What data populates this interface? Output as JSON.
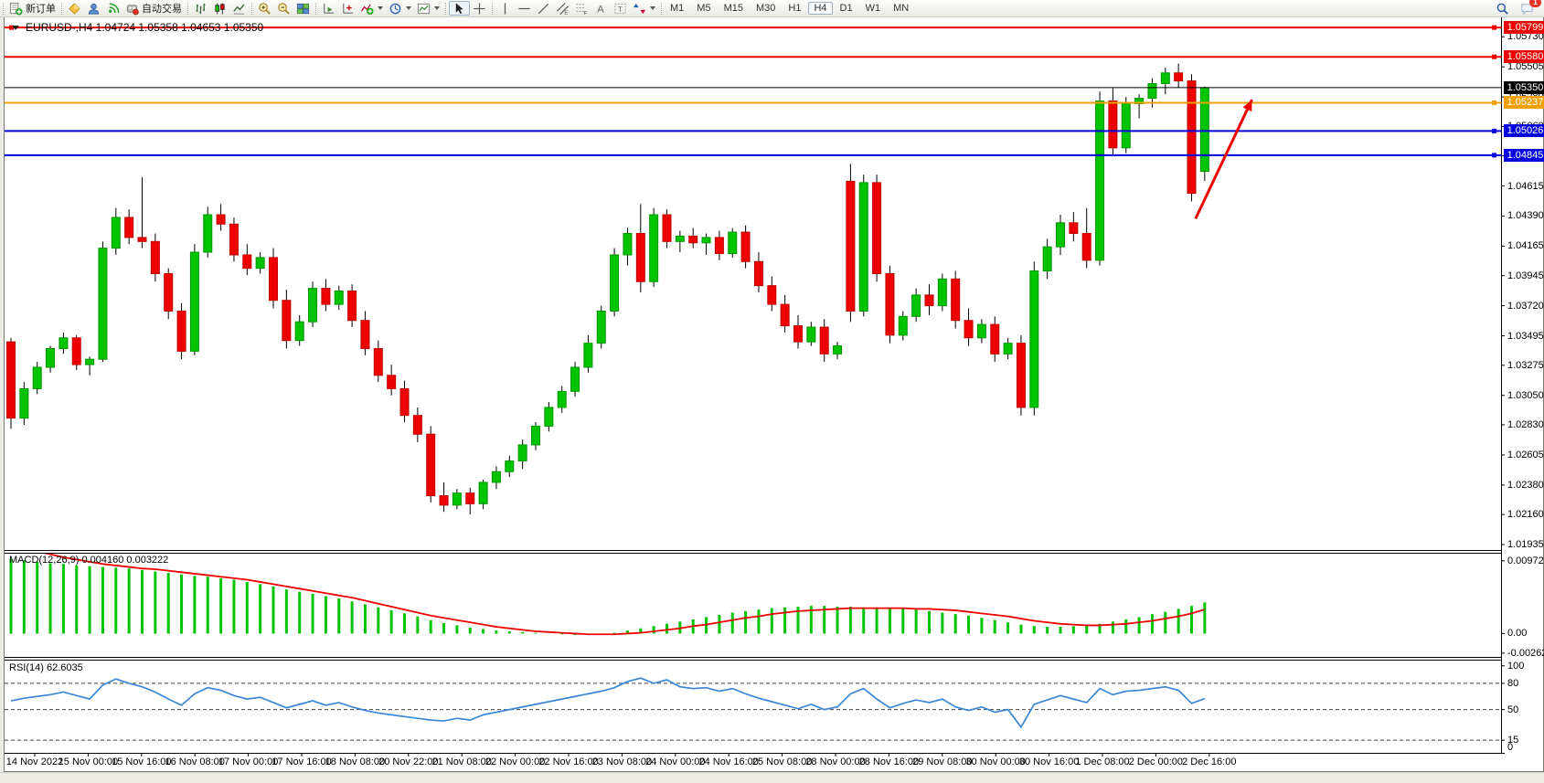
{
  "toolbar": {
    "new_order_label": "新订单",
    "autotrading_label": "自动交易",
    "timeframes": {
      "items": [
        "M1",
        "M5",
        "M15",
        "M30",
        "H1",
        "H4",
        "D1",
        "W1",
        "MN"
      ],
      "active": "H4"
    },
    "notification_count": "1",
    "icons": [
      "new-order-icon",
      "metaeditor-icon",
      "community-icon",
      "signals-icon",
      "autotrading-icon",
      "bar-chart-icon",
      "candle-chart-icon",
      "line-chart-icon",
      "zoom-in-icon",
      "zoom-out-icon",
      "tile-windows-icon",
      "auto-scroll-icon",
      "chart-shift-icon",
      "add-indicator-icon",
      "period-clock-icon",
      "template-icon",
      "cursor-icon",
      "crosshair-icon",
      "vline-icon",
      "hline-icon",
      "trendline-icon",
      "channel-icon",
      "fibonacci-icon",
      "text-icon",
      "text-label-icon",
      "arrows-icon",
      "search-icon",
      "chat-icon"
    ]
  },
  "chart": {
    "title": "EURUSD-,H4  1.04724 1.05358 1.04653 1.05350",
    "symbol": "EURUSD-",
    "timeframe": "H4",
    "ohlc_display": {
      "open": "1.04724",
      "high": "1.05358",
      "low": "1.04653",
      "close": "1.05350"
    }
  },
  "macd": {
    "label": "MACD(12,26,9) 0.004160 0.003222"
  },
  "rsi": {
    "label": "RSI(14) 62.6035"
  },
  "colors": {
    "up": "#00c400",
    "up_border": "#009600",
    "down": "#ee0000",
    "down_border": "#c00000",
    "wick": "#000000",
    "macd_histogram": "#00c400",
    "macd_signal": "#ee0000",
    "rsi_line": "#3a87d8",
    "hline_red": "#ee0000",
    "hline_orange": "#f0a000",
    "hline_blue": "#0000e0",
    "last_price": "#000000",
    "arrow": "#ee0000",
    "axis": "#000000"
  },
  "chart_data": [
    {
      "type": "candlestick",
      "title": "EURUSD-,H4",
      "ylim": [
        1.01908,
        1.05875
      ],
      "y_ticks": [
        "1.05730",
        "1.05505",
        "1.05280",
        "1.05060",
        "1.04840",
        "1.04615",
        "1.04390",
        "1.04165",
        "1.03945",
        "1.03720",
        "1.03495",
        "1.03275",
        "1.03050",
        "1.02830",
        "1.02605",
        "1.02380",
        "1.02160",
        "1.01935"
      ],
      "y_tick_values": [
        1.0573,
        1.05505,
        1.0528,
        1.0506,
        1.0484,
        1.04615,
        1.0439,
        1.04165,
        1.03945,
        1.0372,
        1.03495,
        1.03275,
        1.0305,
        1.0283,
        1.02605,
        1.0238,
        1.0216,
        1.01935
      ],
      "x_labels": [
        "14 Nov 2022",
        "15 Nov 00:00",
        "15 Nov 16:00",
        "16 Nov 08:00",
        "17 Nov 00:00",
        "17 Nov 16:00",
        "18 Nov 08:00",
        "20 Nov 22:00",
        "21 Nov 08:00",
        "22 Nov 00:00",
        "22 Nov 16:00",
        "23 Nov 08:00",
        "24 Nov 00:00",
        "24 Nov 16:00",
        "25 Nov 08:00",
        "28 Nov 00:00",
        "28 Nov 16:00",
        "29 Nov 08:00",
        "30 Nov 00:00",
        "30 Nov 16:00",
        "1 Dec 08:00",
        "2 Dec 00:00",
        "2 Dec 16:00"
      ],
      "hlines": [
        {
          "price": 1.05799,
          "label": "1.05799",
          "color": "#ee0000",
          "width": 2,
          "handles": [
            "left",
            "right"
          ]
        },
        {
          "price": 1.0558,
          "label": "1.05580",
          "color": "#ee0000",
          "width": 2,
          "handles": [
            "right"
          ]
        },
        {
          "price": 1.0535,
          "label": "1.05350",
          "color": "#000000",
          "width": 1,
          "handles": [],
          "is_last_price": true
        },
        {
          "price": 1.05237,
          "label": "1.05237",
          "color": "#f0a000",
          "width": 2,
          "handles": [
            "right"
          ]
        },
        {
          "price": 1.05026,
          "label": "1.05026",
          "color": "#0000e0",
          "width": 2,
          "handles": [
            "right"
          ]
        },
        {
          "price": 1.04845,
          "label": "1.04845",
          "color": "#0000e0",
          "width": 2,
          "handles": [
            "right"
          ]
        }
      ],
      "arrow": {
        "from_index": 90.3,
        "from_price": 1.0437,
        "to_index": 94.6,
        "to_price": 1.0526,
        "color": "#ee0000"
      },
      "candles": [
        [
          1.0345,
          1.0348,
          1.028,
          1.0288
        ],
        [
          1.0288,
          1.0315,
          1.0283,
          1.031
        ],
        [
          1.031,
          1.033,
          1.0306,
          1.0326
        ],
        [
          1.0326,
          1.0342,
          1.0322,
          1.034
        ],
        [
          1.034,
          1.0352,
          1.0336,
          1.0348
        ],
        [
          1.0348,
          1.035,
          1.0324,
          1.0328
        ],
        [
          1.0328,
          1.0334,
          1.032,
          1.0332
        ],
        [
          1.0332,
          1.042,
          1.033,
          1.0415
        ],
        [
          1.0415,
          1.0445,
          1.041,
          1.0438
        ],
        [
          1.0438,
          1.0444,
          1.0418,
          1.0423
        ],
        [
          1.0423,
          1.0468,
          1.0415,
          1.042
        ],
        [
          1.042,
          1.0426,
          1.039,
          1.0396
        ],
        [
          1.0396,
          1.04,
          1.0362,
          1.0368
        ],
        [
          1.0368,
          1.0374,
          1.0332,
          1.0338
        ],
        [
          1.0338,
          1.0418,
          1.0335,
          1.0412
        ],
        [
          1.0412,
          1.0446,
          1.0408,
          1.044
        ],
        [
          1.044,
          1.0448,
          1.0428,
          1.0433
        ],
        [
          1.0433,
          1.0438,
          1.0405,
          1.041
        ],
        [
          1.041,
          1.0418,
          1.0395,
          1.04
        ],
        [
          1.04,
          1.0412,
          1.0396,
          1.0408
        ],
        [
          1.0408,
          1.0415,
          1.037,
          1.0376
        ],
        [
          1.0376,
          1.0384,
          1.034,
          1.0346
        ],
        [
          1.0346,
          1.0365,
          1.0342,
          1.036
        ],
        [
          1.036,
          1.039,
          1.0356,
          1.0385
        ],
        [
          1.0385,
          1.0392,
          1.0368,
          1.0373
        ],
        [
          1.0373,
          1.0387,
          1.0369,
          1.0383
        ],
        [
          1.0383,
          1.0388,
          1.0356,
          1.0361
        ],
        [
          1.0361,
          1.0368,
          1.0335,
          1.034
        ],
        [
          1.034,
          1.0346,
          1.0315,
          1.032
        ],
        [
          1.032,
          1.0328,
          1.0305,
          1.031
        ],
        [
          1.031,
          1.0316,
          1.0285,
          1.029
        ],
        [
          1.029,
          1.0296,
          1.027,
          1.0276
        ],
        [
          1.0276,
          1.0282,
          1.0225,
          1.023
        ],
        [
          1.023,
          1.024,
          1.0218,
          1.0223
        ],
        [
          1.0223,
          1.0235,
          1.022,
          1.0232
        ],
        [
          1.0232,
          1.0236,
          1.0216,
          1.0224
        ],
        [
          1.0224,
          1.0242,
          1.022,
          1.024
        ],
        [
          1.024,
          1.0252,
          1.0235,
          1.0248
        ],
        [
          1.0248,
          1.026,
          1.0244,
          1.0256
        ],
        [
          1.0256,
          1.0272,
          1.025,
          1.0268
        ],
        [
          1.0268,
          1.0285,
          1.0264,
          1.0282
        ],
        [
          1.0282,
          1.03,
          1.0278,
          1.0296
        ],
        [
          1.0296,
          1.0312,
          1.0292,
          1.0308
        ],
        [
          1.0308,
          1.033,
          1.0304,
          1.0326
        ],
        [
          1.0326,
          1.035,
          1.0322,
          1.0344
        ],
        [
          1.0344,
          1.0372,
          1.034,
          1.0368
        ],
        [
          1.0368,
          1.0415,
          1.0364,
          1.041
        ],
        [
          1.041,
          1.043,
          1.0402,
          1.0426
        ],
        [
          1.0426,
          1.0448,
          1.0382,
          1.039
        ],
        [
          1.039,
          1.0445,
          1.0386,
          1.044
        ],
        [
          1.044,
          1.0444,
          1.0415,
          1.042
        ],
        [
          1.042,
          1.0428,
          1.0412,
          1.0424
        ],
        [
          1.0424,
          1.043,
          1.0415,
          1.0419
        ],
        [
          1.0419,
          1.0426,
          1.041,
          1.0423
        ],
        [
          1.0423,
          1.0428,
          1.0406,
          1.0411
        ],
        [
          1.0411,
          1.043,
          1.0408,
          1.0427
        ],
        [
          1.0427,
          1.0432,
          1.04,
          1.0405
        ],
        [
          1.0405,
          1.0412,
          1.0382,
          1.0387
        ],
        [
          1.0387,
          1.0394,
          1.0368,
          1.0373
        ],
        [
          1.0373,
          1.038,
          1.0352,
          1.0357
        ],
        [
          1.0357,
          1.0365,
          1.034,
          1.0345
        ],
        [
          1.0345,
          1.036,
          1.0342,
          1.0356
        ],
        [
          1.0356,
          1.0362,
          1.033,
          1.0336
        ],
        [
          1.0336,
          1.0345,
          1.0332,
          1.0342
        ],
        [
          1.0465,
          1.0478,
          1.036,
          1.0368
        ],
        [
          1.0368,
          1.047,
          1.0364,
          1.0464
        ],
        [
          1.0464,
          1.047,
          1.039,
          1.0396
        ],
        [
          1.0396,
          1.0402,
          1.0344,
          1.035
        ],
        [
          1.035,
          1.0368,
          1.0346,
          1.0364
        ],
        [
          1.0364,
          1.0385,
          1.036,
          1.038
        ],
        [
          1.038,
          1.0388,
          1.0365,
          1.0372
        ],
        [
          1.0372,
          1.0396,
          1.0368,
          1.0392
        ],
        [
          1.0392,
          1.0398,
          1.0355,
          1.0361
        ],
        [
          1.0361,
          1.037,
          1.0342,
          1.0348
        ],
        [
          1.0348,
          1.0362,
          1.0344,
          1.0358
        ],
        [
          1.0358,
          1.0364,
          1.033,
          1.0336
        ],
        [
          1.0336,
          1.0348,
          1.0332,
          1.0344
        ],
        [
          1.0344,
          1.035,
          1.029,
          1.0296
        ],
        [
          1.0296,
          1.0405,
          1.029,
          1.0398
        ],
        [
          1.0398,
          1.0422,
          1.0392,
          1.0416
        ],
        [
          1.0416,
          1.044,
          1.041,
          1.0434
        ],
        [
          1.0434,
          1.0442,
          1.042,
          1.0426
        ],
        [
          1.0426,
          1.0445,
          1.04,
          1.0406
        ],
        [
          1.0406,
          1.0532,
          1.0402,
          1.0525
        ],
        [
          1.0525,
          1.0535,
          1.0485,
          1.049
        ],
        [
          1.049,
          1.0528,
          1.0486,
          1.0523
        ],
        [
          1.0523,
          1.053,
          1.0512,
          1.0527
        ],
        [
          1.0527,
          1.0542,
          1.052,
          1.0538
        ],
        [
          1.0538,
          1.055,
          1.053,
          1.0546
        ],
        [
          1.0546,
          1.0553,
          1.0535,
          1.054
        ],
        [
          1.054,
          1.0545,
          1.045,
          1.0456
        ],
        [
          1.04724,
          1.05358,
          1.04653,
          1.0535
        ]
      ]
    },
    {
      "type": "bar",
      "name": "MACD(12,26,9)",
      "main_value": 0.00416,
      "signal_value": 0.003222,
      "ylim": [
        -0.003,
        0.01068
      ],
      "y_ticks": [
        "0.00972",
        "0.00",
        "-0.00262"
      ],
      "y_tick_values": [
        0.00972,
        0.0,
        -0.00262
      ],
      "histogram": [
        0.01,
        0.0098,
        0.0096,
        0.0094,
        0.0093,
        0.0091,
        0.009,
        0.0089,
        0.0088,
        0.0087,
        0.0085,
        0.0083,
        0.0081,
        0.0079,
        0.0077,
        0.0076,
        0.0074,
        0.0072,
        0.0069,
        0.0066,
        0.0063,
        0.0059,
        0.0056,
        0.0053,
        0.005,
        0.0047,
        0.0043,
        0.0039,
        0.0035,
        0.0031,
        0.0027,
        0.0023,
        0.0018,
        0.0014,
        0.0011,
        0.0008,
        0.0006,
        0.0004,
        0.0003,
        0.0002,
        0.0001,
        0.0,
        -0.0001,
        -0.0002,
        -0.0002,
        -0.0001,
        0.0001,
        0.0004,
        0.0007,
        0.001,
        0.0013,
        0.0016,
        0.0019,
        0.0022,
        0.0025,
        0.0028,
        0.003,
        0.0032,
        0.0034,
        0.0035,
        0.0036,
        0.0037,
        0.0037,
        0.0036,
        0.0036,
        0.0035,
        0.0035,
        0.0034,
        0.0033,
        0.0032,
        0.003,
        0.0028,
        0.0026,
        0.0024,
        0.0021,
        0.0018,
        0.0015,
        0.0012,
        0.001,
        0.0009,
        0.0009,
        0.001,
        0.0011,
        0.0013,
        0.0016,
        0.0019,
        0.0022,
        0.0026,
        0.0029,
        0.0033,
        0.0037,
        0.00416
      ],
      "signal": [
        0.0118,
        0.0114,
        0.011,
        0.0106,
        0.0102,
        0.0099,
        0.0096,
        0.0093,
        0.0091,
        0.0089,
        0.0087,
        0.0086,
        0.0084,
        0.0082,
        0.008,
        0.0078,
        0.0076,
        0.0074,
        0.0072,
        0.0069,
        0.0066,
        0.0063,
        0.006,
        0.0057,
        0.0054,
        0.0051,
        0.0048,
        0.0044,
        0.004,
        0.0036,
        0.0032,
        0.0028,
        0.0024,
        0.0021,
        0.0018,
        0.0015,
        0.0012,
        0.0009,
        0.0007,
        0.0005,
        0.0003,
        0.0002,
        0.0001,
        0.0,
        -0.0001,
        -0.0001,
        -0.0001,
        0.0,
        0.0001,
        0.0003,
        0.0005,
        0.0007,
        0.001,
        0.0012,
        0.0015,
        0.0018,
        0.0021,
        0.0023,
        0.0026,
        0.0028,
        0.003,
        0.0031,
        0.0032,
        0.0033,
        0.0034,
        0.0034,
        0.0034,
        0.0034,
        0.0034,
        0.0033,
        0.0033,
        0.0032,
        0.0031,
        0.0029,
        0.0027,
        0.0025,
        0.0023,
        0.002,
        0.0017,
        0.0015,
        0.0013,
        0.0012,
        0.0011,
        0.0011,
        0.0012,
        0.0013,
        0.0015,
        0.0017,
        0.002,
        0.0023,
        0.0027,
        0.003222
      ]
    },
    {
      "type": "line",
      "name": "RSI(14)",
      "value": 62.6035,
      "ylim": [
        0,
        106
      ],
      "levels": [
        80,
        50,
        15
      ],
      "y_ticks": [
        "100",
        "80",
        "50",
        "15",
        "0"
      ],
      "y_tick_values": [
        100,
        80,
        50,
        15,
        0
      ],
      "values": [
        60,
        63,
        65,
        67,
        70,
        66,
        62,
        78,
        85,
        80,
        76,
        70,
        62,
        55,
        68,
        75,
        72,
        66,
        62,
        64,
        58,
        52,
        56,
        60,
        55,
        58,
        53,
        49,
        46,
        44,
        42,
        40,
        38,
        37,
        40,
        38,
        44,
        47,
        50,
        53,
        56,
        59,
        62,
        65,
        68,
        71,
        75,
        82,
        86,
        80,
        84,
        76,
        74,
        75,
        71,
        74,
        68,
        63,
        59,
        55,
        51,
        56,
        50,
        53,
        68,
        74,
        62,
        52,
        57,
        61,
        58,
        62,
        53,
        49,
        53,
        47,
        50,
        30,
        56,
        61,
        66,
        62,
        58,
        74,
        67,
        71,
        72,
        74,
        76,
        72,
        57,
        62.6
      ]
    }
  ]
}
